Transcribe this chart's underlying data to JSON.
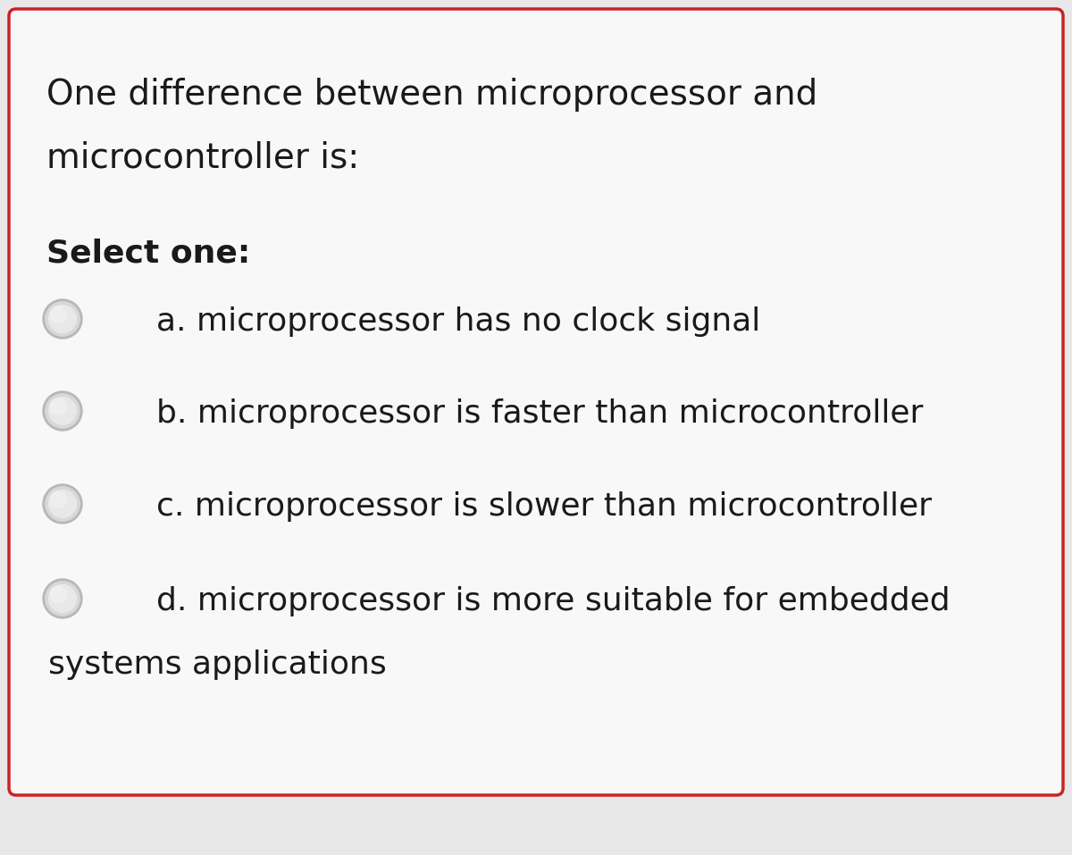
{
  "background_color": "#e8e8e8",
  "card_color": "#f8f8f8",
  "border_color": "#cc2222",
  "border_linewidth": 2.5,
  "question_text_line1": "One difference between microprocessor and",
  "question_text_line2": "microcontroller is:",
  "select_text": "Select one:",
  "option_texts": [
    "a. microprocessor has no clock signal",
    "b. microprocessor is faster than microcontroller",
    "c. microprocessor is slower than microcontroller",
    "d. microprocessor is more suitable for embedded"
  ],
  "option_d_line2": "systems applications",
  "question_fontsize": 28,
  "select_fontsize": 26,
  "option_fontsize": 26,
  "text_color": "#1a1a1a",
  "font_family": "DejaVu Sans"
}
